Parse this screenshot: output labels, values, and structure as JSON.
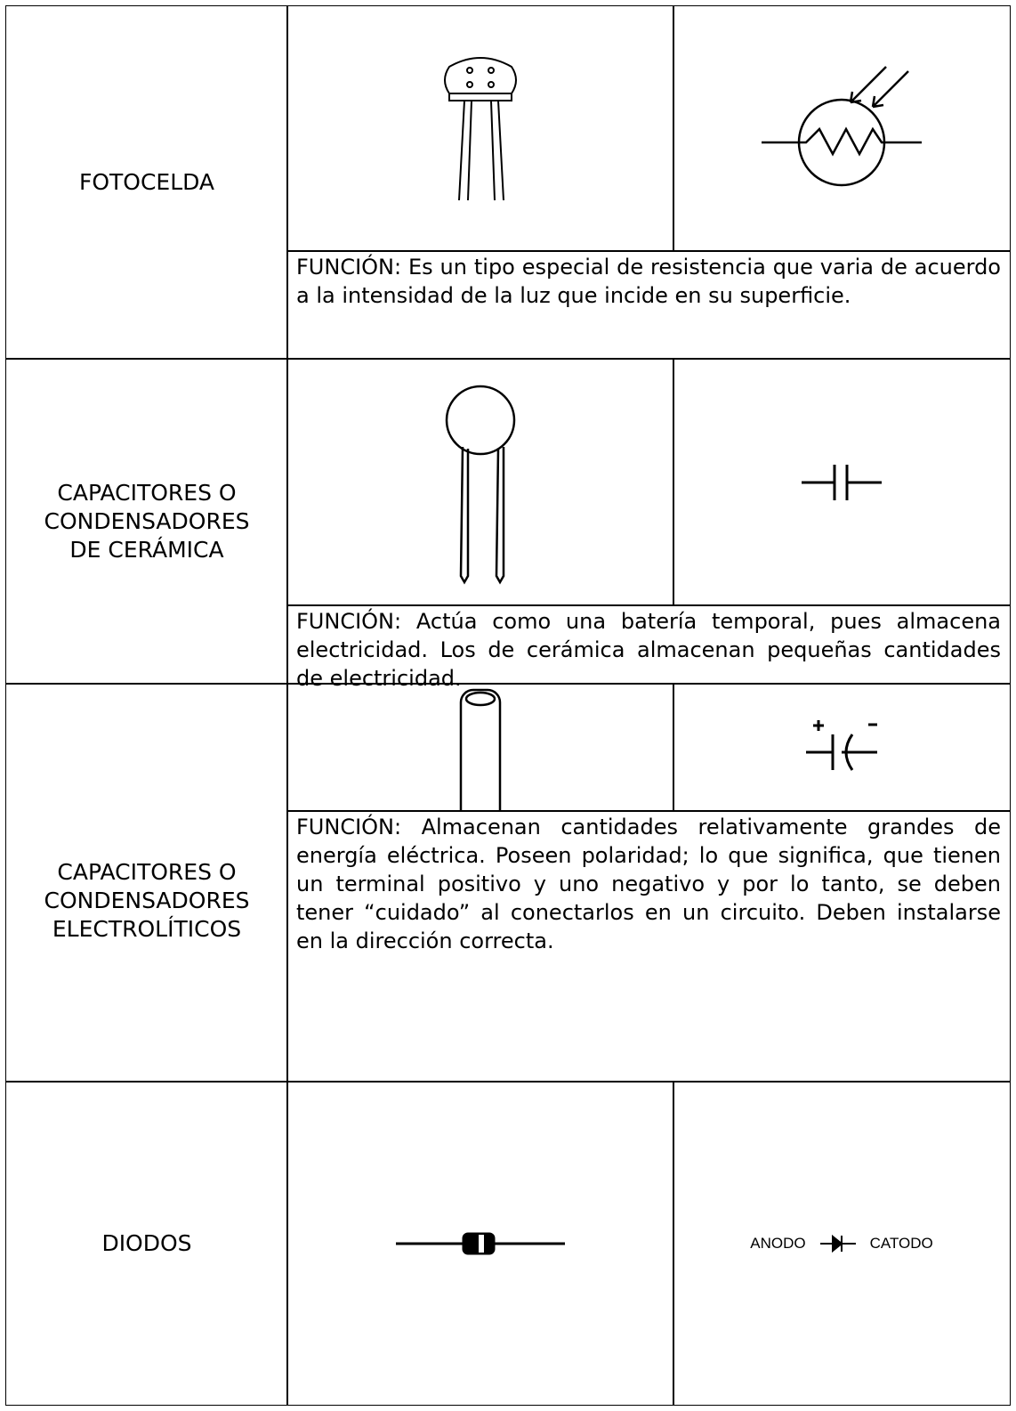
{
  "rows": [
    {
      "name": "FOTOCELDA",
      "function": "FUNCIÓN: Es un tipo especial de resistencia que varia de acuerdo a la intensidad de la luz que incide en su superficie."
    },
    {
      "name": "CAPACITORES O CONDENSADORES DE CERÁMICA",
      "function": "FUNCIÓN: Actúa como una batería temporal, pues almacena electricidad. Los de cerámica almacenan pequeñas cantidades de electricidad."
    },
    {
      "name": "CAPACITORES O CONDENSADORES ELECTROLÍTICOS",
      "function": "FUNCIÓN: Almacenan cantidades relativamente grandes de energía eléctrica. Poseen polaridad; lo que significa, que tienen un terminal positivo y uno negativo y por lo tanto, se deben tener “cuidado” al conectarlos en un circuito. Deben instalarse en la dirección correcta."
    },
    {
      "name": "DIODOS"
    }
  ],
  "diode_symbol": {
    "anode": "ANODO",
    "cathode": "CATODO"
  }
}
